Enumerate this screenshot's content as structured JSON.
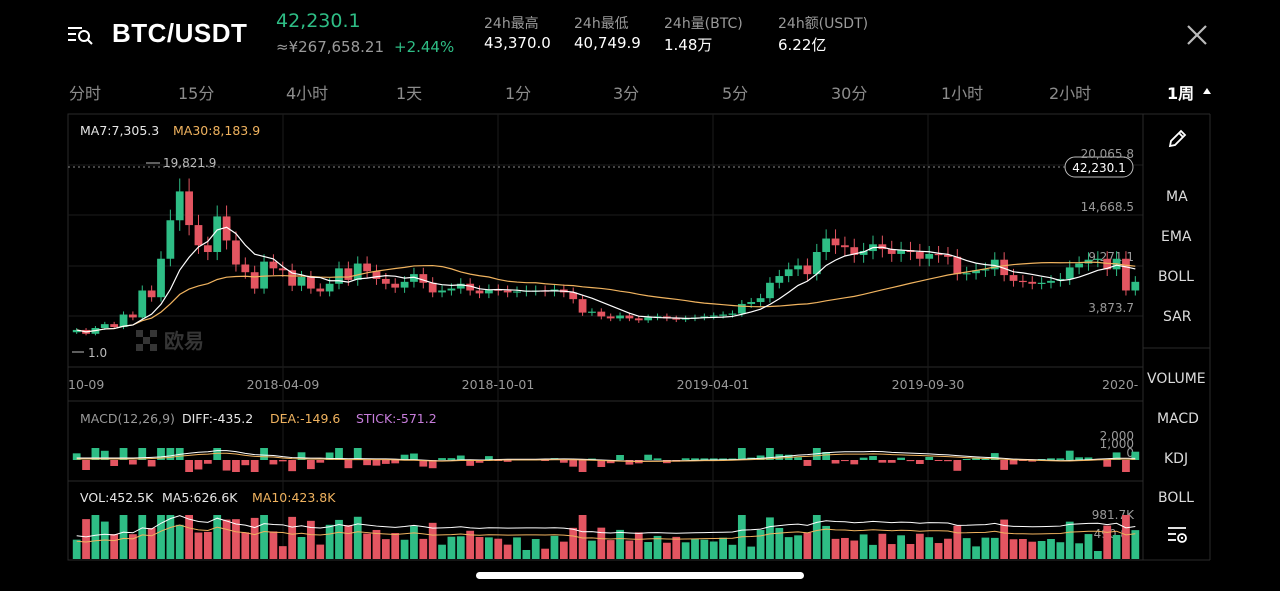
{
  "header": {
    "pair": "BTC/USDT",
    "price": "42,230.1",
    "price_cny": "≈¥267,658.21",
    "change": "+2.44%",
    "stats": [
      {
        "label": "24h最高",
        "value": "43,370.0"
      },
      {
        "label": "24h最低",
        "value": "40,749.9"
      },
      {
        "label": "24h量(BTC)",
        "value": "1.48万"
      },
      {
        "label": "24h额(USDT)",
        "value": "6.22亿"
      }
    ],
    "menu_icon": "menu-search-icon",
    "close_icon": "close-icon"
  },
  "tabs": [
    "分时",
    "15分",
    "4小时",
    "1天",
    "1分",
    "3分",
    "5分",
    "30分",
    "1小时",
    "2小时",
    "1周"
  ],
  "active_tab": "1周",
  "chart_data": {
    "type": "candlestick",
    "ma_labels": {
      "ma7": "MA7:7,305.3",
      "ma30": "MA30:8,183.9"
    },
    "price_labels": [
      "20,065.8",
      "14,668.5",
      "9,271.1",
      "3,873.7"
    ],
    "current_price_tag": "42,230.1",
    "high_marker": "19,821.9",
    "low_marker": "1.0",
    "dates": [
      "10-09",
      "2018-04-09",
      "2018-10-01",
      "2019-04-01",
      "2019-09-30",
      "2020-"
    ],
    "watermark": "欧易",
    "macd": {
      "params": "MACD(12,26,9)",
      "diff": "DIFF:-435.2",
      "dea": "DEA:-149.6",
      "stick": "STICK:-571.2",
      "axis": [
        "2,000",
        "1,000",
        "0"
      ]
    },
    "volume": {
      "vol": "VOL:452.5K",
      "ma5": "MA5:626.6K",
      "ma10": "MA10:423.8K",
      "axis": [
        "981.7K",
        "490.8"
      ]
    },
    "closes": [
      2400,
      2000,
      2600,
      3000,
      2700,
      4000,
      3700,
      6500,
      5800,
      9800,
      13800,
      16800,
      13300,
      11200,
      10500,
      14200,
      11700,
      9200,
      8400,
      6700,
      9500,
      8800,
      8600,
      7000,
      7900,
      6700,
      6400,
      7200,
      8800,
      7600,
      9300,
      8500,
      7700,
      7200,
      6800,
      7400,
      8200,
      7300,
      6300,
      6500,
      6700,
      7200,
      6500,
      6200,
      6600,
      6500,
      6300,
      6400,
      6500,
      6500,
      6400,
      6600,
      6300,
      5600,
      4200,
      4300,
      3800,
      3600,
      3900,
      3600,
      3400,
      3700,
      3800,
      3600,
      3500,
      3600,
      3700,
      3800,
      3900,
      4000,
      4100,
      5100,
      5300,
      5700,
      7300,
      8000,
      8700,
      9100,
      8200,
      10500,
      11900,
      11200,
      11000,
      10200,
      10600,
      11300,
      10800,
      10300,
      10700,
      10500,
      9800,
      10300,
      10200,
      10000,
      8200,
      8300,
      8600,
      8700,
      9700,
      8100,
      7500,
      7400,
      7200,
      7300,
      7500,
      7700,
      8900,
      9300,
      9700,
      9800,
      8700,
      9800,
      6500,
      7400
    ]
  },
  "sidebar": [
    "MA",
    "EMA",
    "BOLL",
    "SAR",
    "VOLUME",
    "MACD",
    "KDJ",
    "BOLL"
  ],
  "colors": {
    "up": "#2ebd85",
    "down": "#e35561",
    "ma7": "#ffffff",
    "ma30": "#f0b35f",
    "stick": "#c77ddb"
  }
}
